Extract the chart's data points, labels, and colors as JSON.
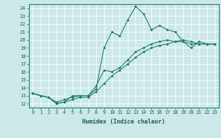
{
  "xlabel": "Humidex (Indice chaleur)",
  "ylabel": "",
  "background_color": "#cce8e8",
  "grid_color": "#ffffff",
  "line_color": "#1a7a6e",
  "xlim": [
    -0.5,
    23.5
  ],
  "ylim": [
    11.5,
    24.5
  ],
  "xticks": [
    0,
    1,
    2,
    3,
    4,
    5,
    6,
    7,
    8,
    9,
    10,
    11,
    12,
    13,
    14,
    15,
    16,
    17,
    18,
    19,
    20,
    21,
    22,
    23
  ],
  "yticks": [
    12,
    13,
    14,
    15,
    16,
    17,
    18,
    19,
    20,
    21,
    22,
    23,
    24
  ],
  "line1_x": [
    0,
    1,
    2,
    3,
    4,
    5,
    6,
    7,
    8,
    9,
    10,
    11,
    12,
    13,
    14,
    15,
    16,
    17,
    18,
    19,
    20,
    21,
    22,
    23
  ],
  "line1_y": [
    13.3,
    13.0,
    12.8,
    12.0,
    12.2,
    13.0,
    13.0,
    13.0,
    13.8,
    19.0,
    21.0,
    20.5,
    22.5,
    24.2,
    23.3,
    21.3,
    21.8,
    21.3,
    21.0,
    19.8,
    19.0,
    19.8,
    19.5,
    19.5
  ],
  "line2_x": [
    0,
    1,
    2,
    3,
    4,
    5,
    6,
    7,
    8,
    9,
    10,
    11,
    12,
    13,
    14,
    15,
    16,
    17,
    18,
    19,
    20,
    21,
    22,
    23
  ],
  "line2_y": [
    13.3,
    13.0,
    12.8,
    12.0,
    12.2,
    12.5,
    12.8,
    12.8,
    13.5,
    14.5,
    15.5,
    16.2,
    17.0,
    17.8,
    18.5,
    19.0,
    19.3,
    19.5,
    19.8,
    20.0,
    19.8,
    19.5,
    19.5,
    19.5
  ],
  "line3_x": [
    0,
    1,
    2,
    3,
    4,
    5,
    6,
    7,
    8,
    9,
    10,
    11,
    12,
    13,
    14,
    15,
    16,
    17,
    18,
    19,
    20,
    21,
    22,
    23
  ],
  "line3_y": [
    13.3,
    13.0,
    12.8,
    12.2,
    12.5,
    12.8,
    13.0,
    13.0,
    14.2,
    16.2,
    16.0,
    16.5,
    17.5,
    18.5,
    19.0,
    19.5,
    19.8,
    20.0,
    19.8,
    19.8,
    19.5,
    19.5,
    19.5,
    19.5
  ],
  "tick_fontsize": 5.0,
  "xlabel_fontsize": 6.0
}
